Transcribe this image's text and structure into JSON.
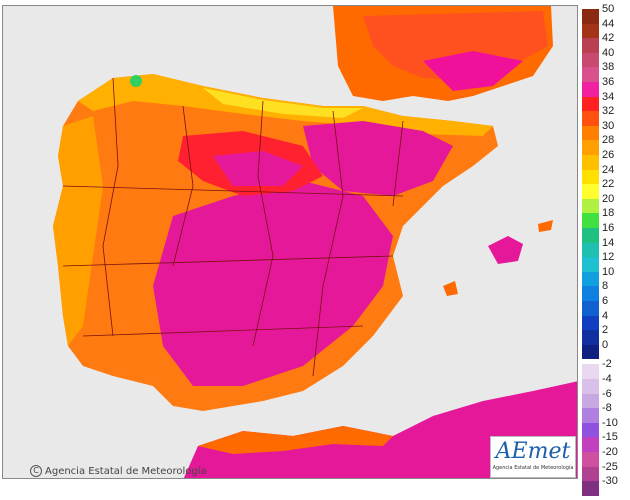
{
  "map": {
    "copyright": "Agencia Estatal de Meteorología",
    "logo": {
      "text": "AEmet",
      "subtitle": "Agencia Estatal de Meteorología"
    },
    "colors": {
      "sea": "#e9e9e9",
      "land_base": "#ff6a00",
      "hot": "#f0109a",
      "hotter": "#e0208a",
      "warm": "#ffa400",
      "mild": "#ffd000",
      "cool": "#ffff20",
      "green_spot": "#30d060"
    }
  },
  "legend": {
    "positive": [
      {
        "label": "50",
        "color": "#8b2a10"
      },
      {
        "label": "44",
        "color": "#a43418"
      },
      {
        "label": "42",
        "color": "#b84050"
      },
      {
        "label": "40",
        "color": "#c84a70"
      },
      {
        "label": "38",
        "color": "#d8508c"
      },
      {
        "label": "36",
        "color": "#f020a0"
      },
      {
        "label": "34",
        "color": "#ff2020"
      },
      {
        "label": "32",
        "color": "#ff5010"
      },
      {
        "label": "30",
        "color": "#ff8000"
      },
      {
        "label": "28",
        "color": "#ffa000"
      },
      {
        "label": "26",
        "color": "#ffc000"
      },
      {
        "label": "24",
        "color": "#ffe000"
      },
      {
        "label": "22",
        "color": "#ffff30"
      },
      {
        "label": "20",
        "color": "#b0f040"
      },
      {
        "label": "18",
        "color": "#40e040"
      },
      {
        "label": "16",
        "color": "#20c080"
      },
      {
        "label": "14",
        "color": "#20c0b0"
      },
      {
        "label": "12",
        "color": "#20c0d0"
      },
      {
        "label": "10",
        "color": "#10a0e0"
      },
      {
        "label": "8",
        "color": "#1080e0"
      },
      {
        "label": "6",
        "color": "#1060d0"
      },
      {
        "label": "4",
        "color": "#1040c0"
      },
      {
        "label": "2",
        "color": "#1030a0"
      },
      {
        "label": "0",
        "color": "#102080"
      }
    ],
    "negative": [
      {
        "label": "-2",
        "color": "#e8d8f0"
      },
      {
        "label": "-4",
        "color": "#d8c0e8"
      },
      {
        "label": "-6",
        "color": "#c8a8e0"
      },
      {
        "label": "-8",
        "color": "#b080e0"
      },
      {
        "label": "-10",
        "color": "#9050e0"
      },
      {
        "label": "-15",
        "color": "#c040c0"
      },
      {
        "label": "-20",
        "color": "#d050a0"
      },
      {
        "label": "-25",
        "color": "#b04090"
      },
      {
        "label": "-30",
        "color": "#803080"
      }
    ]
  }
}
